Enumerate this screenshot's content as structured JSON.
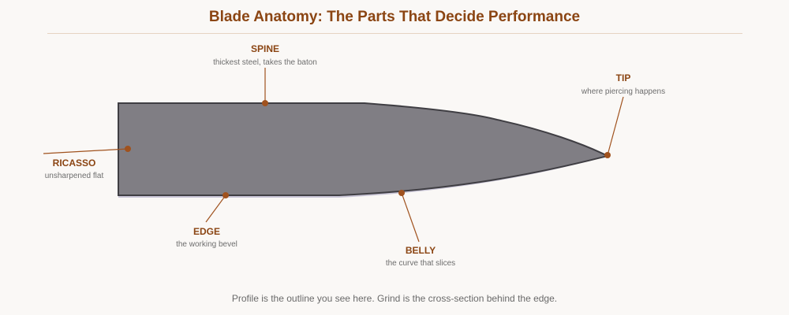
{
  "title": "Blade Anatomy: The Parts That Decide Performance",
  "caption": "Profile is the outline you see here. Grind is the cross-section behind the edge.",
  "colors": {
    "blade_fill": "#807e84",
    "blade_stroke": "#3f3e43",
    "edge_highlight": "#c9c5d6",
    "accent": "#a0521e",
    "title": "#8b4513",
    "muted": "#6e6e6e"
  },
  "parts": {
    "spine": {
      "label": "SPINE",
      "desc": "thickest steel, takes the baton"
    },
    "tip": {
      "label": "TIP",
      "desc": "where piercing happens"
    },
    "ricasso": {
      "label": "RICASSO",
      "desc": "unsharpened flat"
    },
    "edge": {
      "label": "EDGE",
      "desc": "the working bevel"
    },
    "belly": {
      "label": "BELLY",
      "desc": "the curve that slices"
    }
  }
}
